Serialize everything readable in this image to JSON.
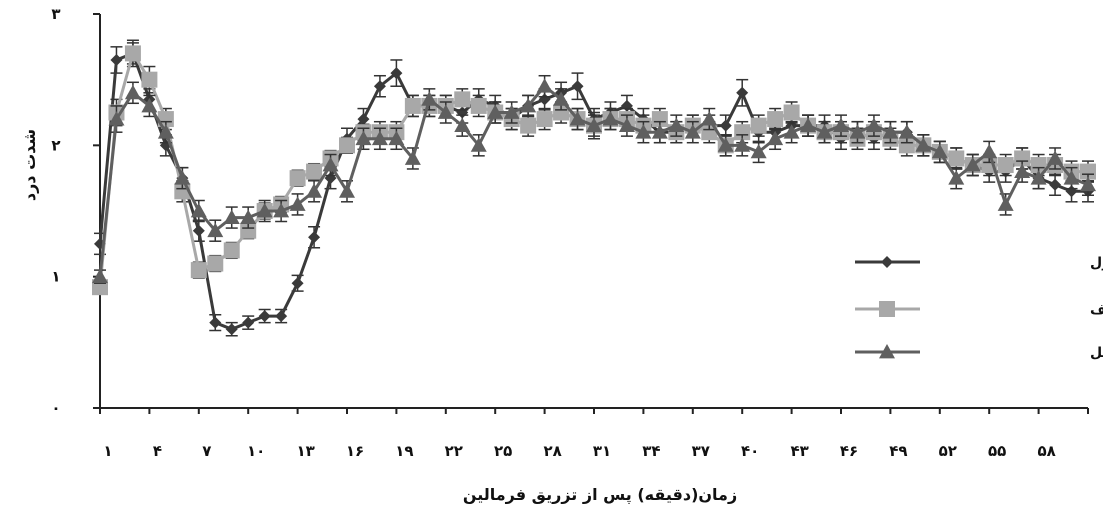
{
  "chart_data": {
    "type": "line",
    "xlabel": "زمان(دقیقه) پس از تزریق فرمالین",
    "ylabel": "شدت درد",
    "xlim": [
      1,
      61
    ],
    "ylim": [
      0,
      3
    ],
    "y_ticks": [
      {
        "value": 0,
        "label": "۰"
      },
      {
        "value": 1,
        "label": "۱"
      },
      {
        "value": 2,
        "label": "۲"
      },
      {
        "value": 3,
        "label": "۳"
      }
    ],
    "x_ticks": [
      {
        "value": 1,
        "label": "۱"
      },
      {
        "value": 4,
        "label": "۴"
      },
      {
        "value": 7,
        "label": "۷"
      },
      {
        "value": 10,
        "label": "۱۰"
      },
      {
        "value": 13,
        "label": "۱۳"
      },
      {
        "value": 16,
        "label": "۱۶"
      },
      {
        "value": 19,
        "label": "۱۹"
      },
      {
        "value": 22,
        "label": "۲۲"
      },
      {
        "value": 25,
        "label": "۲۵"
      },
      {
        "value": 28,
        "label": "۲۸"
      },
      {
        "value": 31,
        "label": "۳۱"
      },
      {
        "value": 34,
        "label": "۳۴"
      },
      {
        "value": 37,
        "label": "۳۷"
      },
      {
        "value": 40,
        "label": "۴۰"
      },
      {
        "value": 43,
        "label": "۴۳"
      },
      {
        "value": 46,
        "label": "۴۶"
      },
      {
        "value": 49,
        "label": "۴۹"
      },
      {
        "value": 52,
        "label": "۵۲"
      },
      {
        "value": 55,
        "label": "۵۵"
      },
      {
        "value": 58,
        "label": "۵۸"
      }
    ],
    "grid": false,
    "legend_position": "right",
    "error_bars": true,
    "series": [
      {
        "name": "کنترل",
        "marker": "diamond",
        "color": "#3a3a3a",
        "marker_color": "#3a3a3a",
        "x": [
          1,
          2,
          3,
          4,
          5,
          6,
          7,
          8,
          9,
          10,
          11,
          12,
          13,
          14,
          15,
          16,
          17,
          18,
          19,
          20,
          21,
          22,
          23,
          24,
          25,
          26,
          27,
          28,
          29,
          30,
          31,
          32,
          33,
          34,
          35,
          36,
          37,
          38,
          39,
          40,
          41,
          42,
          43,
          44,
          45,
          46,
          47,
          48,
          49,
          50,
          51,
          52,
          53,
          54,
          55,
          56,
          57,
          58,
          59,
          60,
          61
        ],
        "values": [
          1.25,
          2.65,
          2.7,
          2.35,
          2.0,
          1.75,
          1.35,
          0.65,
          0.6,
          0.65,
          0.7,
          0.7,
          0.95,
          1.3,
          1.75,
          2.05,
          2.2,
          2.45,
          2.55,
          2.3,
          2.3,
          2.3,
          2.25,
          2.35,
          2.3,
          2.2,
          2.3,
          2.35,
          2.4,
          2.45,
          2.2,
          2.25,
          2.3,
          2.2,
          2.1,
          2.1,
          2.15,
          2.15,
          2.15,
          2.4,
          2.1,
          2.1,
          2.15,
          2.15,
          2.15,
          2.05,
          2.1,
          2.05,
          2.1,
          2.1,
          2.0,
          1.95,
          1.9,
          1.85,
          1.8,
          1.8,
          1.9,
          1.75,
          1.7,
          1.65,
          1.65
        ],
        "errors": [
          0.08,
          0.1,
          0.08,
          0.08,
          0.08,
          0.08,
          0.08,
          0.06,
          0.05,
          0.05,
          0.05,
          0.05,
          0.06,
          0.08,
          0.08,
          0.08,
          0.08,
          0.08,
          0.1,
          0.08,
          0.08,
          0.08,
          0.08,
          0.08,
          0.08,
          0.08,
          0.08,
          0.08,
          0.08,
          0.1,
          0.08,
          0.08,
          0.08,
          0.08,
          0.08,
          0.08,
          0.08,
          0.08,
          0.08,
          0.1,
          0.08,
          0.08,
          0.08,
          0.08,
          0.08,
          0.08,
          0.08,
          0.08,
          0.08,
          0.08,
          0.08,
          0.08,
          0.08,
          0.08,
          0.08,
          0.08,
          0.08,
          0.08,
          0.08,
          0.08,
          0.08
        ]
      },
      {
        "name": "پارکینسونی ضعیف",
        "marker": "square",
        "color": "#a8a8a8",
        "marker_color": "#a8a8a8",
        "x": [
          1,
          2,
          3,
          4,
          5,
          6,
          7,
          8,
          9,
          10,
          11,
          12,
          13,
          14,
          15,
          16,
          17,
          18,
          19,
          20,
          21,
          22,
          23,
          24,
          25,
          26,
          27,
          28,
          29,
          30,
          31,
          32,
          33,
          34,
          35,
          36,
          37,
          38,
          39,
          40,
          41,
          42,
          43,
          44,
          45,
          46,
          47,
          48,
          49,
          50,
          51,
          52,
          53,
          54,
          55,
          56,
          57,
          58,
          59,
          60,
          61
        ],
        "values": [
          0.92,
          2.25,
          2.7,
          2.5,
          2.2,
          1.65,
          1.05,
          1.1,
          1.2,
          1.35,
          1.5,
          1.55,
          1.75,
          1.8,
          1.9,
          2.0,
          2.1,
          2.1,
          2.1,
          2.3,
          2.3,
          2.3,
          2.35,
          2.3,
          2.25,
          2.2,
          2.15,
          2.2,
          2.25,
          2.2,
          2.15,
          2.2,
          2.2,
          2.15,
          2.2,
          2.1,
          2.15,
          2.1,
          2.0,
          2.1,
          2.15,
          2.2,
          2.25,
          2.15,
          2.1,
          2.1,
          2.05,
          2.1,
          2.05,
          2.0,
          2.0,
          1.95,
          1.9,
          1.85,
          1.85,
          1.85,
          1.9,
          1.85,
          1.85,
          1.8,
          1.8
        ],
        "errors": [
          0.05,
          0.1,
          0.1,
          0.1,
          0.08,
          0.08,
          0.06,
          0.06,
          0.06,
          0.06,
          0.06,
          0.06,
          0.06,
          0.06,
          0.06,
          0.06,
          0.06,
          0.08,
          0.08,
          0.08,
          0.08,
          0.08,
          0.08,
          0.08,
          0.08,
          0.08,
          0.08,
          0.08,
          0.08,
          0.08,
          0.08,
          0.08,
          0.08,
          0.08,
          0.08,
          0.08,
          0.08,
          0.08,
          0.08,
          0.08,
          0.08,
          0.08,
          0.08,
          0.08,
          0.08,
          0.08,
          0.08,
          0.08,
          0.08,
          0.08,
          0.08,
          0.08,
          0.08,
          0.08,
          0.08,
          0.08,
          0.08,
          0.08,
          0.08,
          0.08,
          0.08
        ]
      },
      {
        "name": "پارکینسونی کامل",
        "marker": "triangle",
        "color": "#5f5f5f",
        "marker_color": "#5f5f5f",
        "x": [
          1,
          2,
          3,
          4,
          5,
          6,
          7,
          8,
          9,
          10,
          11,
          12,
          13,
          14,
          15,
          16,
          17,
          18,
          19,
          20,
          21,
          22,
          23,
          24,
          25,
          26,
          27,
          28,
          29,
          30,
          31,
          32,
          33,
          34,
          35,
          36,
          37,
          38,
          39,
          40,
          41,
          42,
          43,
          44,
          45,
          46,
          47,
          48,
          49,
          50,
          51,
          52,
          53,
          54,
          55,
          56,
          57,
          58,
          59,
          60,
          61
        ],
        "values": [
          1.0,
          2.2,
          2.4,
          2.3,
          2.1,
          1.75,
          1.5,
          1.35,
          1.45,
          1.45,
          1.5,
          1.5,
          1.55,
          1.65,
          1.85,
          1.65,
          2.05,
          2.05,
          2.05,
          1.9,
          2.35,
          2.25,
          2.15,
          2.0,
          2.25,
          2.25,
          2.3,
          2.45,
          2.35,
          2.2,
          2.15,
          2.2,
          2.15,
          2.1,
          2.1,
          2.15,
          2.1,
          2.2,
          2.0,
          2.0,
          1.95,
          2.05,
          2.1,
          2.15,
          2.1,
          2.15,
          2.1,
          2.15,
          2.1,
          2.1,
          2.0,
          1.95,
          1.75,
          1.85,
          1.95,
          1.55,
          1.8,
          1.75,
          1.9,
          1.75,
          1.7
        ],
        "errors": [
          0.05,
          0.1,
          0.08,
          0.08,
          0.08,
          0.08,
          0.08,
          0.08,
          0.08,
          0.08,
          0.08,
          0.08,
          0.08,
          0.08,
          0.08,
          0.08,
          0.08,
          0.08,
          0.08,
          0.08,
          0.08,
          0.08,
          0.08,
          0.08,
          0.08,
          0.08,
          0.08,
          0.08,
          0.08,
          0.08,
          0.1,
          0.08,
          0.08,
          0.08,
          0.08,
          0.08,
          0.08,
          0.08,
          0.08,
          0.08,
          0.08,
          0.08,
          0.08,
          0.08,
          0.08,
          0.08,
          0.08,
          0.08,
          0.08,
          0.08,
          0.08,
          0.08,
          0.08,
          0.08,
          0.08,
          0.08,
          0.08,
          0.08,
          0.08,
          0.08,
          0.08
        ]
      }
    ]
  }
}
